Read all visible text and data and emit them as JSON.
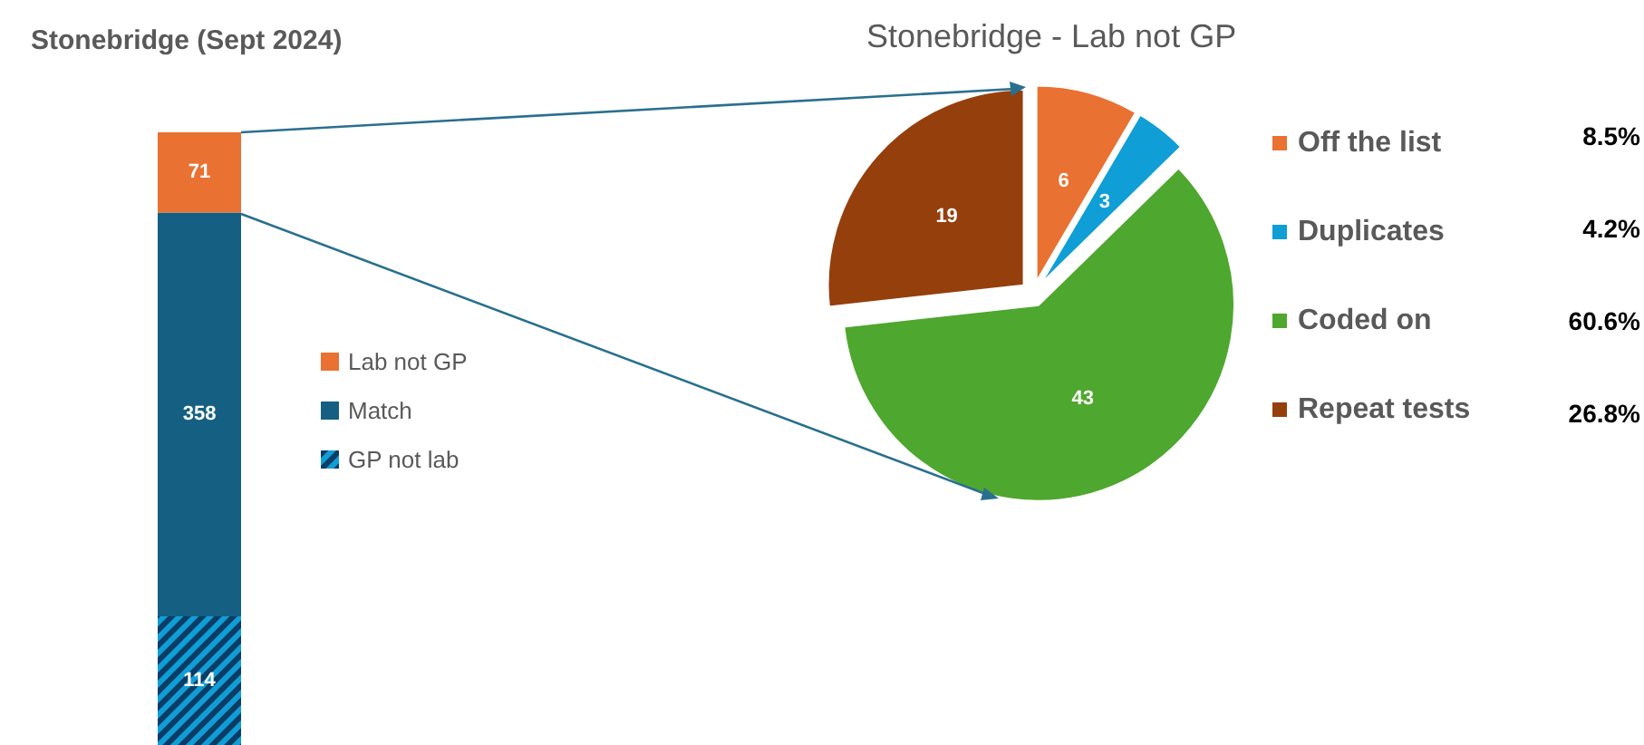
{
  "chart_data": [
    {
      "type": "bar",
      "title": "Stonebridge (Sept 2024)",
      "categories": [
        null
      ],
      "stacked": true,
      "data_labels": true,
      "legend": "right",
      "series": [
        {
          "name": "GP not lab",
          "color": "#0f9ed5",
          "values": [
            114
          ]
        },
        {
          "name": "Match",
          "color": "#156082",
          "values": [
            358
          ]
        },
        {
          "name": "Lab not GP",
          "color": "#e97132",
          "values": [
            71
          ]
        }
      ]
    },
    {
      "type": "pie",
      "title": "Stonebridge - Lab not GP",
      "categories": [
        "Off the list",
        "Duplicates",
        "Coded on",
        "Repeat tests"
      ],
      "values": [
        6,
        3,
        43,
        19
      ],
      "colors": [
        "#e97132",
        "#0f9ed5",
        "#4ea72e",
        "#953f0d"
      ],
      "data_labels": true,
      "legend": "right",
      "annotations": [
        "8.5%",
        "4.2%",
        "60.6%",
        "26.8%"
      ]
    }
  ]
}
